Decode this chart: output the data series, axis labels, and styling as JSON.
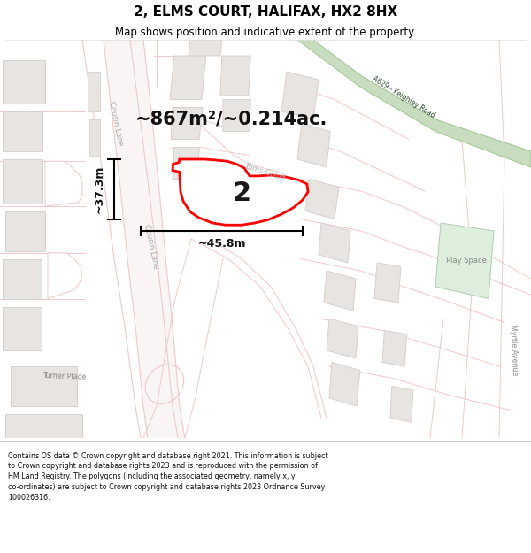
{
  "title": "2, ELMS COURT, HALIFAX, HX2 8HX",
  "subtitle": "Map shows position and indicative extent of the property.",
  "area_label": "~867m²/~0.214ac.",
  "dim_width": "~45.8m",
  "dim_height": "~37.3m",
  "number_label": "2",
  "road_label_cousin1": "Cousin Lane",
  "road_label_cousin2": "Cousin Lane",
  "road_label_elms": "Elms Court",
  "road_label_turner": "Turner Place",
  "road_label_myrtle": "Myrtle Avenue",
  "road_label_a629": "A629 - Keighley Road",
  "road_label_playspace": "Play Space",
  "map_bg": "#ffffff",
  "road_fill": "#f8f0f0",
  "road_line": "#f0c8c8",
  "block_fill": "#e8e4e2",
  "block_edge": "#d8d0cc",
  "green_fill": "#c8ddc0",
  "green_edge": "#a8c898",
  "footer_text": "Contains OS data © Crown copyright and database right 2021. This information is subject to Crown copyright and database rights 2023 and is reproduced with the permission of HM Land Registry. The polygons (including the associated geometry, namely x, y co-ordinates) are subject to Crown copyright and database rights 2023 Ordnance Survey 100026316.",
  "title_fontsize": 11,
  "subtitle_fontsize": 8.5,
  "area_fontsize": 15,
  "dim_fontsize": 9,
  "footer_fontsize": 5.8
}
